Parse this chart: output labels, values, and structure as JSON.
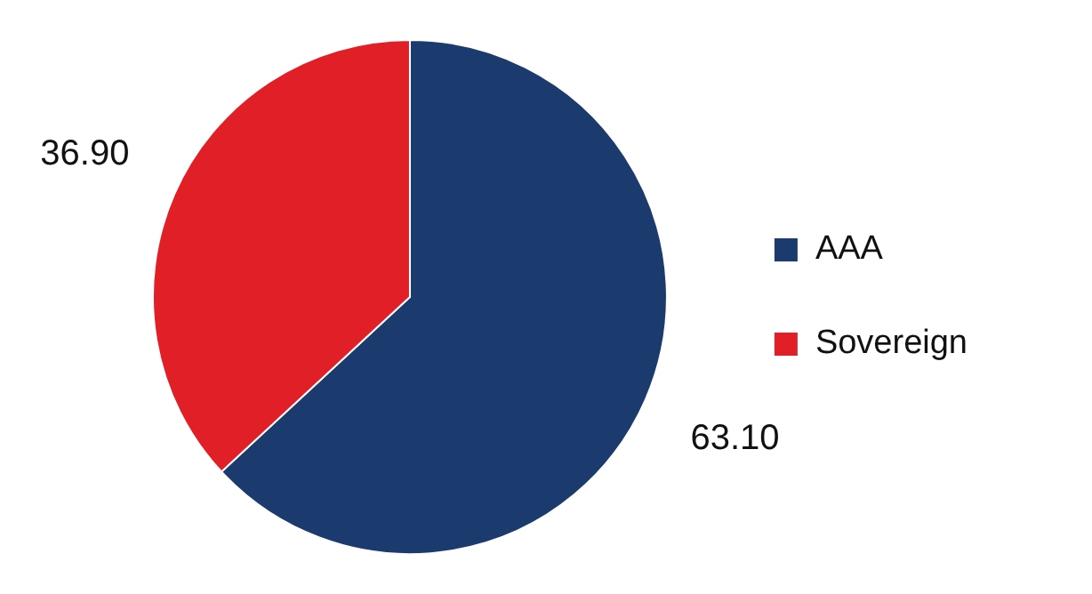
{
  "chart_data": {
    "type": "pie",
    "categories": [
      "AAA",
      "Sovereign"
    ],
    "values": [
      63.1,
      36.9
    ],
    "colors": [
      "#1b3a6e",
      "#e02026"
    ],
    "value_labels": [
      "63.10",
      "36.90"
    ],
    "legend": "right"
  }
}
